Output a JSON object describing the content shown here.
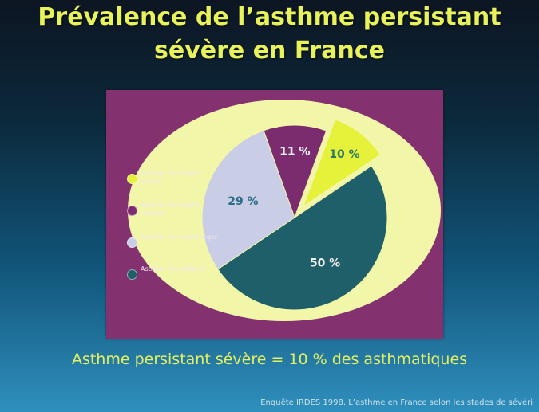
{
  "title_line1": "Prévalence de l’asthme persistant",
  "title_line2": "sévère en France",
  "subtitle": "Asthme persistant sévère = 10 % des asthmatiques",
  "source": "Enquête IRDES 1998. L’asthme en France selon les stades de sévéri",
  "colors": {
    "background_top": "#0d1522",
    "background_bottom": "#2f8fbd",
    "panel": "#83316f",
    "outer_ring": "#f2f6a8",
    "title_text": "#e8f25a"
  },
  "chart_data": {
    "type": "pie",
    "exploded_slice": "Asthme persistant sévère",
    "legend_placement": "left",
    "slices": [
      {
        "label": "Asthme persistant sévère",
        "value": 10,
        "display": "10 %",
        "color": "#e6f23a",
        "text_color": "#2a7a6a"
      },
      {
        "label": "Asthme intermittent",
        "value": 50,
        "display": "50 %",
        "color": "#1f5f6a",
        "text_color": "#f4f4f4"
      },
      {
        "label": "Asthme persistant léger",
        "value": 29,
        "display": "29 %",
        "color": "#c9cde6",
        "text_color": "#2a6d86"
      },
      {
        "label": "Asthme persistant modéré",
        "value": 11,
        "display": "11 %",
        "color": "#7a2c6f",
        "text_color": "#f4f4f4"
      }
    ],
    "legend": [
      {
        "label": "Asthme persistant sévère",
        "color": "#e6f23a"
      },
      {
        "label": "Asthme persistant modéré",
        "color": "#7a2c6f"
      },
      {
        "label": "Asthme persistant léger",
        "color": "#c9cde6"
      },
      {
        "label": "Asthme intermittent",
        "color": "#1f5f6a"
      }
    ]
  }
}
